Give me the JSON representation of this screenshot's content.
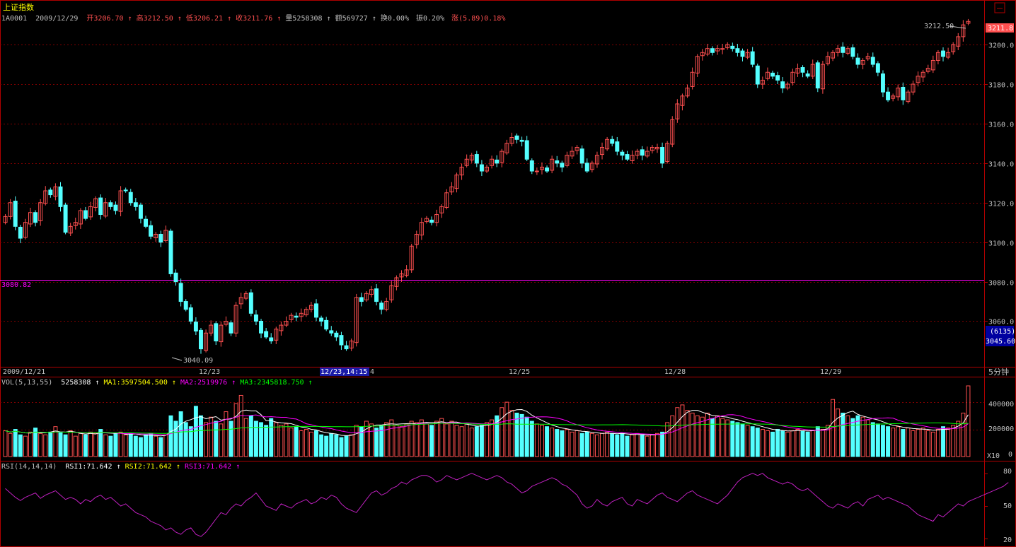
{
  "header": {
    "title": "上证指数",
    "code": "1A0001",
    "date": "2009/12/29",
    "open": "开3206.70",
    "high": "高3212.50",
    "low": "低3206.21",
    "close": "收3211.76",
    "vol": "量5258308",
    "amount": "额569727",
    "turnover": "换0.00%",
    "amplitude": "振0.20%",
    "change": "涨(5.89)0.18%"
  },
  "price_axis": {
    "ticks": [
      "3200.0",
      "3180.0",
      "3160.0",
      "3140.0",
      "3120.0",
      "3100.0",
      "3080.0",
      "3060.0"
    ],
    "current_price": "3211.8",
    "cursor_count": "(6135)",
    "cursor_price": "3045.60",
    "ref_line_label": "3080.82",
    "ref_line_value": 3080.82,
    "high_marker": "3212.50",
    "low_marker": "3040.09"
  },
  "date_axis": {
    "labels": [
      "2009/12/21",
      "12/23",
      "12/25",
      "12/28",
      "12/29"
    ],
    "cursor_label": "12/23,14:15",
    "cursor_suffix": "4",
    "period": "5分钟"
  },
  "vol_panel": {
    "name": "VOL(5,13,55)",
    "value": "5258308",
    "ma1": "MA1:3597504.500",
    "ma2": "MA2:2519976",
    "ma3": "MA3:2345818.750",
    "ticks": [
      "400000",
      "200000",
      "0"
    ],
    "unit": "X10"
  },
  "rsi_panel": {
    "name": "RSI(14,14,14)",
    "rsi1": "RSI1:71.642",
    "rsi2": "RSI2:71.642",
    "rsi3": "RSI3:71.642",
    "ticks": [
      "80",
      "50",
      "20"
    ]
  },
  "colors": {
    "up": "#ff5050",
    "down": "#54ffff",
    "grid": "#800000",
    "frame": "#b00000",
    "ma1": "#ffffff",
    "ma2": "#ff00ff",
    "ma3": "#00ff00",
    "rsi": "#c020c0",
    "refline": "#ff00ff"
  },
  "chart_data": {
    "type": "candlestick",
    "price_range": [
      3038,
      3219
    ],
    "vol_range": [
      0,
      520000
    ],
    "rsi_range": [
      15,
      85
    ],
    "candles_close": [
      3113,
      3120,
      3108,
      3102,
      3110,
      3115,
      3110,
      3120,
      3126,
      3124,
      3128,
      3118,
      3105,
      3108,
      3110,
      3116,
      3112,
      3118,
      3122,
      3114,
      3120,
      3118,
      3116,
      3126,
      3126,
      3120,
      3118,
      3112,
      3108,
      3103,
      3104,
      3100,
      3106,
      3084,
      3080,
      3070,
      3066,
      3060,
      3055,
      3046,
      3054,
      3058,
      3050,
      3058,
      3060,
      3054,
      3068,
      3072,
      3074,
      3064,
      3060,
      3054,
      3052,
      3050,
      3056,
      3058,
      3060,
      3063,
      3062,
      3064,
      3066,
      3068,
      3062,
      3060,
      3056,
      3054,
      3052,
      3048,
      3046,
      3050,
      3072,
      3070,
      3074,
      3076,
      3070,
      3066,
      3070,
      3078,
      3082,
      3084,
      3086,
      3098,
      3104,
      3110,
      3112,
      3110,
      3114,
      3118,
      3125,
      3128,
      3134,
      3138,
      3142,
      3144,
      3140,
      3136,
      3138,
      3142,
      3140,
      3146,
      3150,
      3153,
      3152,
      3151,
      3142,
      3136,
      3136,
      3138,
      3136,
      3142,
      3140,
      3138,
      3144,
      3146,
      3148,
      3140,
      3136,
      3140,
      3144,
      3148,
      3152,
      3150,
      3146,
      3144,
      3142,
      3144,
      3146,
      3144,
      3146,
      3148,
      3148,
      3140,
      3150,
      3162,
      3170,
      3174,
      3178,
      3186,
      3194,
      3196,
      3198,
      3196,
      3198,
      3198,
      3200,
      3198,
      3196,
      3194,
      3196,
      3190,
      3180,
      3182,
      3186,
      3184,
      3182,
      3178,
      3180,
      3186,
      3188,
      3186,
      3184,
      3190,
      3178,
      3190,
      3194,
      3196,
      3198,
      3196,
      3198,
      3194,
      3190,
      3192,
      3194,
      3190,
      3186,
      3176,
      3172,
      3174,
      3178,
      3172,
      3176,
      3180,
      3184,
      3186,
      3188,
      3192,
      3196,
      3194,
      3196,
      3200,
      3204,
      3210,
      3211.76
    ],
    "volume": [
      190000,
      170000,
      200000,
      160000,
      150000,
      180000,
      210000,
      170000,
      160000,
      180000,
      220000,
      180000,
      160000,
      190000,
      150000,
      170000,
      160000,
      180000,
      170000,
      200000,
      160000,
      150000,
      170000,
      180000,
      160000,
      170000,
      150000,
      140000,
      160000,
      170000,
      150000,
      140000,
      160000,
      300000,
      260000,
      330000,
      250000,
      220000,
      370000,
      300000,
      250000,
      290000,
      260000,
      240000,
      330000,
      260000,
      390000,
      450000,
      280000,
      300000,
      260000,
      250000,
      230000,
      280000,
      250000,
      230000,
      240000,
      210000,
      220000,
      190000,
      200000,
      180000,
      190000,
      160000,
      150000,
      170000,
      160000,
      140000,
      150000,
      160000,
      230000,
      220000,
      260000,
      240000,
      210000,
      230000,
      250000,
      270000,
      230000,
      220000,
      240000,
      260000,
      250000,
      270000,
      240000,
      230000,
      260000,
      280000,
      240000,
      260000,
      230000,
      220000,
      240000,
      210000,
      220000,
      230000,
      250000,
      270000,
      300000,
      360000,
      400000,
      340000,
      320000,
      310000,
      290000,
      260000,
      240000,
      230000,
      220000,
      210000,
      200000,
      190000,
      200000,
      180000,
      190000,
      170000,
      180000,
      170000,
      160000,
      170000,
      180000,
      170000,
      160000,
      170000,
      150000,
      160000,
      170000,
      160000,
      150000,
      160000,
      170000,
      180000,
      250000,
      300000,
      360000,
      380000,
      340000,
      320000,
      300000,
      290000,
      320000,
      280000,
      300000,
      280000,
      270000,
      260000,
      250000,
      240000,
      230000,
      220000,
      210000,
      200000,
      190000,
      180000,
      200000,
      190000,
      180000,
      190000,
      200000,
      190000,
      180000,
      190000,
      220000,
      200000,
      230000,
      420000,
      350000,
      320000,
      300000,
      280000,
      300000,
      290000,
      270000,
      250000,
      240000,
      230000,
      220000,
      210000,
      220000,
      200000,
      210000,
      190000,
      200000,
      210000,
      190000,
      180000,
      200000,
      220000,
      210000,
      230000,
      260000,
      320000,
      520000
    ],
    "rsi": [
      66,
      62,
      58,
      55,
      58,
      60,
      62,
      57,
      60,
      62,
      64,
      60,
      56,
      58,
      56,
      52,
      56,
      54,
      58,
      60,
      56,
      58,
      54,
      50,
      52,
      48,
      44,
      42,
      40,
      36,
      34,
      32,
      28,
      30,
      26,
      24,
      28,
      30,
      24,
      22,
      26,
      32,
      38,
      44,
      42,
      48,
      52,
      50,
      55,
      58,
      62,
      56,
      50,
      48,
      46,
      52,
      50,
      48,
      52,
      54,
      56,
      52,
      54,
      58,
      56,
      60,
      58,
      52,
      48,
      46,
      44,
      50,
      56,
      62,
      64,
      60,
      62,
      66,
      68,
      72,
      70,
      74,
      76,
      78,
      78,
      76,
      72,
      74,
      78,
      76,
      74,
      76,
      78,
      80,
      78,
      76,
      74,
      76,
      78,
      76,
      72,
      70,
      66,
      62,
      64,
      68,
      70,
      72,
      74,
      76,
      74,
      70,
      68,
      64,
      60,
      52,
      48,
      50,
      56,
      52,
      50,
      54,
      56,
      58,
      52,
      50,
      56,
      54,
      52,
      56,
      60,
      62,
      58,
      56,
      54,
      58,
      62,
      64,
      60,
      58,
      56,
      54,
      52,
      56,
      60,
      66,
      72,
      76,
      78,
      80,
      78,
      80,
      76,
      74,
      72,
      70,
      72,
      70,
      66,
      64,
      66,
      62,
      58,
      54,
      50,
      48,
      52,
      50,
      48,
      52,
      54,
      50,
      56,
      58,
      60,
      56,
      58,
      56,
      54,
      52,
      50,
      46,
      42,
      40,
      38,
      36,
      42,
      40,
      44,
      48,
      52,
      50,
      54,
      56,
      58,
      60,
      62,
      64,
      66,
      68,
      71.642
    ]
  }
}
